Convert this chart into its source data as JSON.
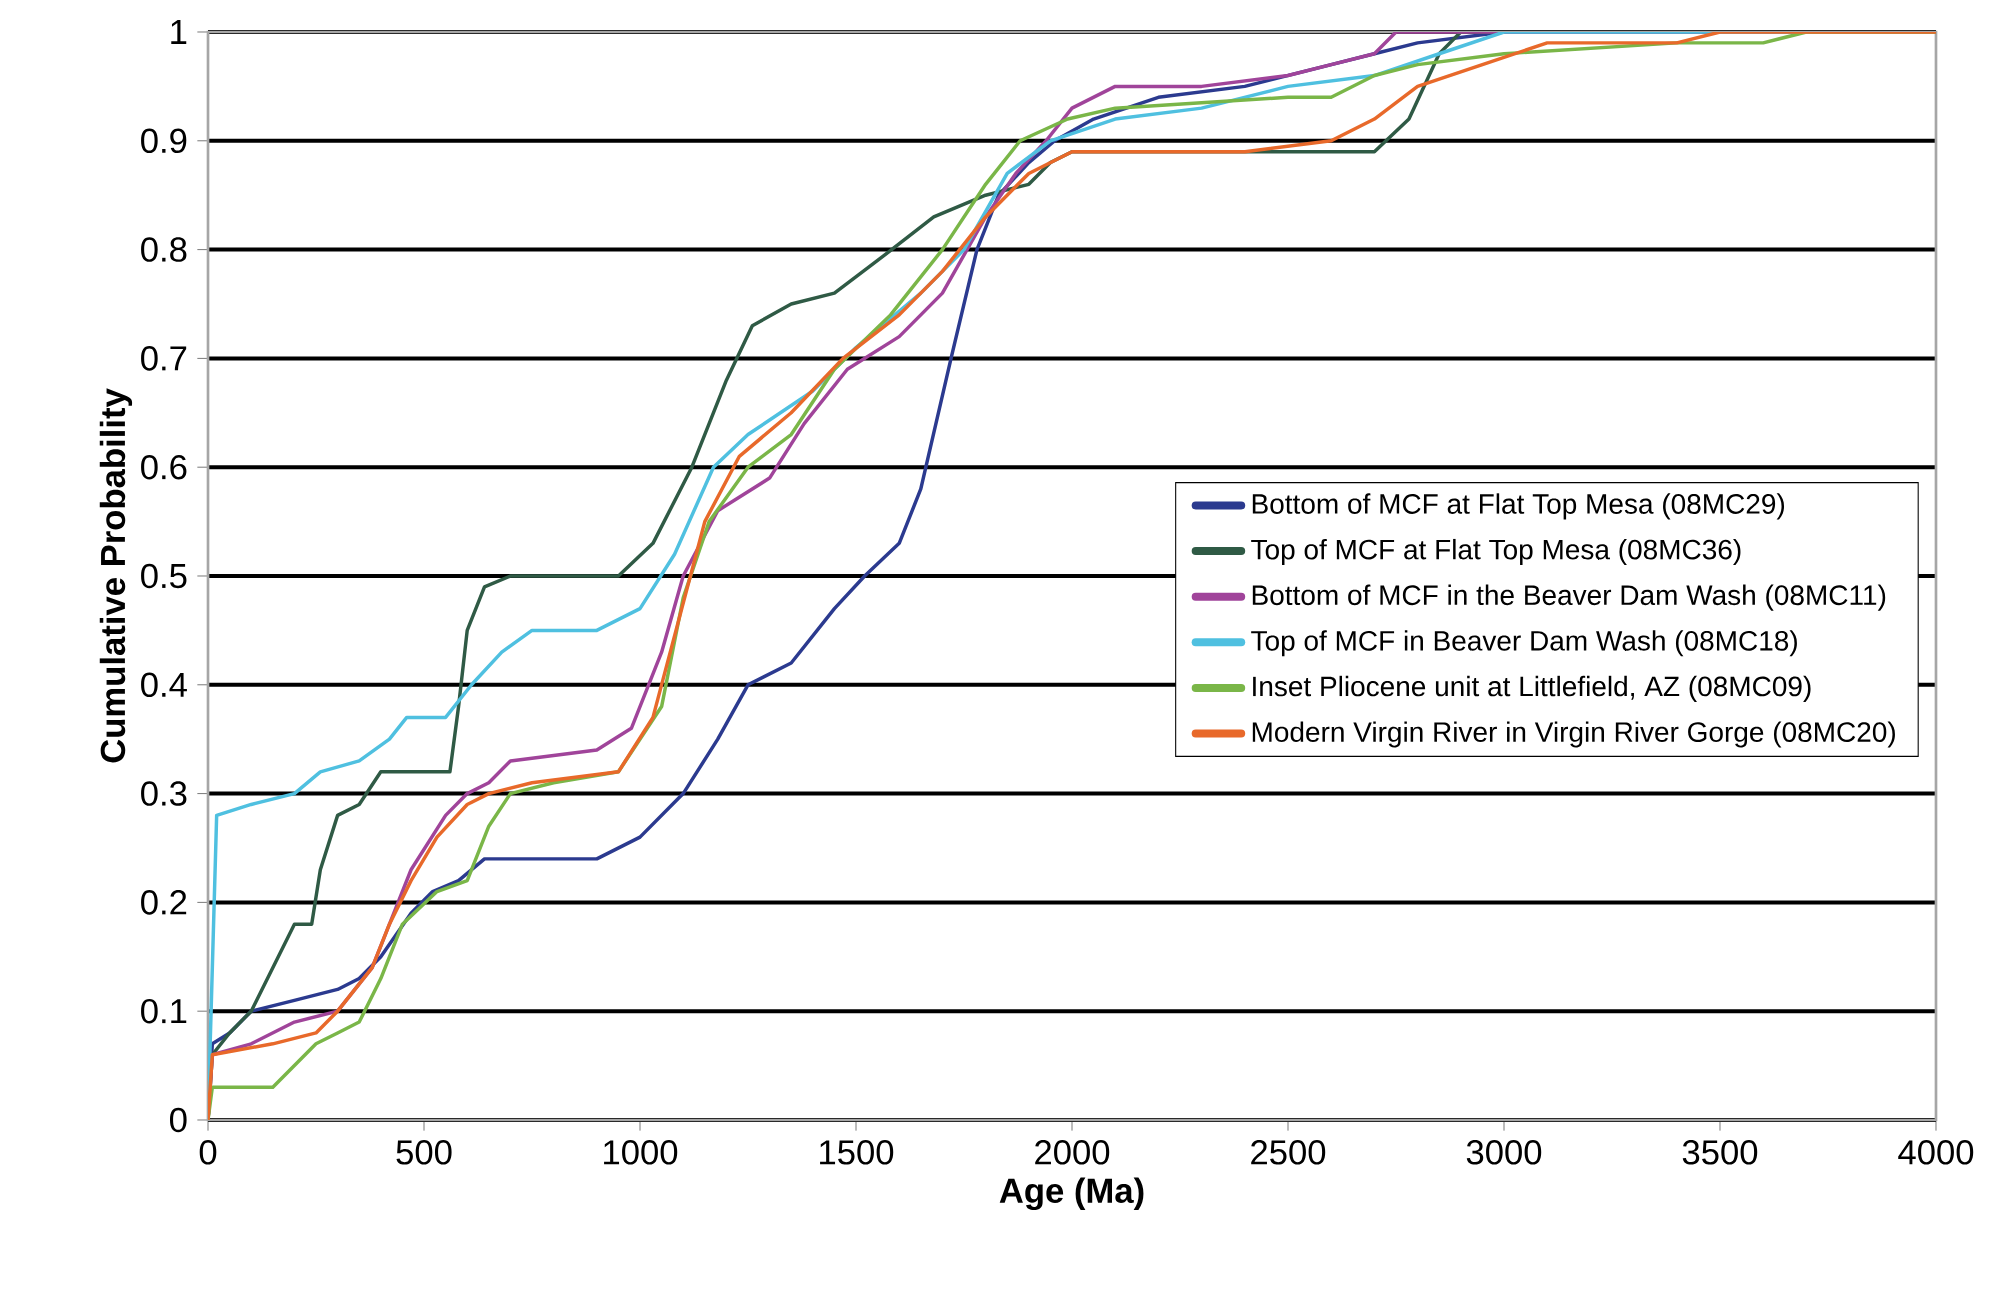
{
  "chart_data": {
    "type": "line",
    "xlabel": "Age (Ma)",
    "ylabel": "Cumulative Probability",
    "xlim": [
      0,
      4000
    ],
    "ylim": [
      0,
      1
    ],
    "xticks": [
      0,
      500,
      1000,
      1500,
      2000,
      2500,
      3000,
      3500,
      4000
    ],
    "yticks": [
      0,
      0.1,
      0.2,
      0.3,
      0.4,
      0.5,
      0.6,
      0.7,
      0.8,
      0.9,
      1
    ],
    "grid": "y",
    "legend": "right",
    "marker": "none",
    "line_style": "solid",
    "series": [
      {
        "name": "Bottom of MCF at Flat Top Mesa  (08MC29)",
        "color": "#2b3a8f",
        "x": [
          0,
          10,
          50,
          100,
          200,
          300,
          350,
          400,
          470,
          520,
          580,
          640,
          900,
          1000,
          1100,
          1180,
          1250,
          1350,
          1450,
          1520,
          1600,
          1650,
          1720,
          1780,
          1830,
          1900,
          1960,
          2050,
          2200,
          2400,
          2600,
          2700,
          2800,
          3000,
          4000
        ],
        "values": [
          0,
          0.07,
          0.08,
          0.1,
          0.11,
          0.12,
          0.13,
          0.15,
          0.19,
          0.21,
          0.22,
          0.24,
          0.24,
          0.26,
          0.3,
          0.35,
          0.4,
          0.42,
          0.47,
          0.5,
          0.53,
          0.58,
          0.7,
          0.8,
          0.85,
          0.88,
          0.9,
          0.92,
          0.94,
          0.95,
          0.97,
          0.98,
          0.99,
          1,
          1
        ]
      },
      {
        "name": "Top of MCF at Flat Top Mesa (08MC36)",
        "color": "#2f5a45",
        "x": [
          0,
          10,
          50,
          100,
          150,
          200,
          240,
          260,
          300,
          350,
          400,
          560,
          580,
          600,
          640,
          700,
          950,
          1030,
          1120,
          1200,
          1260,
          1350,
          1450,
          1550,
          1680,
          1800,
          1900,
          1950,
          2000,
          2700,
          2780,
          2850,
          2900,
          4000
        ],
        "values": [
          0,
          0.06,
          0.08,
          0.1,
          0.14,
          0.18,
          0.18,
          0.23,
          0.28,
          0.29,
          0.32,
          0.32,
          0.38,
          0.45,
          0.49,
          0.5,
          0.5,
          0.53,
          0.6,
          0.68,
          0.73,
          0.75,
          0.76,
          0.79,
          0.83,
          0.85,
          0.86,
          0.88,
          0.89,
          0.89,
          0.92,
          0.98,
          1,
          1
        ]
      },
      {
        "name": "Bottom of MCF in the Beaver Dam Wash (08MC11)",
        "color": "#a0449a",
        "x": [
          0,
          10,
          100,
          200,
          300,
          380,
          420,
          470,
          550,
          600,
          650,
          700,
          900,
          980,
          1050,
          1100,
          1180,
          1300,
          1380,
          1480,
          1600,
          1700,
          1800,
          1870,
          1940,
          2000,
          2100,
          2300,
          2500,
          2600,
          2700,
          2750,
          4000
        ],
        "values": [
          0,
          0.06,
          0.07,
          0.09,
          0.1,
          0.14,
          0.18,
          0.23,
          0.28,
          0.3,
          0.31,
          0.33,
          0.34,
          0.36,
          0.43,
          0.5,
          0.56,
          0.59,
          0.64,
          0.69,
          0.72,
          0.76,
          0.83,
          0.87,
          0.9,
          0.93,
          0.95,
          0.95,
          0.96,
          0.97,
          0.98,
          1,
          1
        ]
      },
      {
        "name": "Top of MCF in Beaver Dam Wash (08MC18)",
        "color": "#4fc0e0",
        "x": [
          0,
          20,
          100,
          200,
          260,
          350,
          420,
          460,
          550,
          610,
          680,
          750,
          900,
          1000,
          1080,
          1170,
          1250,
          1400,
          1500,
          1650,
          1750,
          1850,
          1950,
          2100,
          2300,
          2500,
          2700,
          2850,
          3000,
          4000
        ],
        "values": [
          0,
          0.28,
          0.29,
          0.3,
          0.32,
          0.33,
          0.35,
          0.37,
          0.37,
          0.4,
          0.43,
          0.45,
          0.45,
          0.47,
          0.52,
          0.6,
          0.63,
          0.67,
          0.71,
          0.76,
          0.8,
          0.87,
          0.9,
          0.92,
          0.93,
          0.95,
          0.96,
          0.98,
          1,
          1
        ]
      },
      {
        "name": "Inset Pliocene unit at Littlefield, AZ (08MC09)",
        "color": "#7ab648",
        "x": [
          0,
          10,
          150,
          200,
          250,
          300,
          350,
          400,
          450,
          530,
          600,
          650,
          700,
          800,
          950,
          1050,
          1100,
          1160,
          1250,
          1350,
          1450,
          1580,
          1700,
          1800,
          1880,
          1990,
          2100,
          2500,
          2600,
          2700,
          2800,
          3000,
          3400,
          3600,
          3700,
          4000
        ],
        "values": [
          0,
          0.03,
          0.03,
          0.05,
          0.07,
          0.08,
          0.09,
          0.13,
          0.18,
          0.21,
          0.22,
          0.27,
          0.3,
          0.31,
          0.32,
          0.38,
          0.48,
          0.55,
          0.6,
          0.63,
          0.69,
          0.74,
          0.8,
          0.86,
          0.9,
          0.92,
          0.93,
          0.94,
          0.94,
          0.96,
          0.97,
          0.98,
          0.99,
          0.99,
          1,
          1
        ]
      },
      {
        "name": "Modern Virgin River in Virgin River Gorge (08MC20)",
        "color": "#e8692a",
        "x": [
          0,
          10,
          150,
          250,
          300,
          380,
          420,
          470,
          530,
          600,
          650,
          750,
          950,
          1030,
          1090,
          1150,
          1230,
          1350,
          1470,
          1600,
          1700,
          1800,
          1900,
          2000,
          2400,
          2600,
          2700,
          2800,
          2950,
          3100,
          3400,
          3500,
          4000
        ],
        "values": [
          0,
          0.06,
          0.07,
          0.08,
          0.1,
          0.14,
          0.18,
          0.22,
          0.26,
          0.29,
          0.3,
          0.31,
          0.32,
          0.37,
          0.46,
          0.55,
          0.61,
          0.65,
          0.7,
          0.74,
          0.78,
          0.83,
          0.87,
          0.89,
          0.89,
          0.9,
          0.92,
          0.95,
          0.97,
          0.99,
          0.99,
          1,
          1
        ]
      }
    ]
  }
}
